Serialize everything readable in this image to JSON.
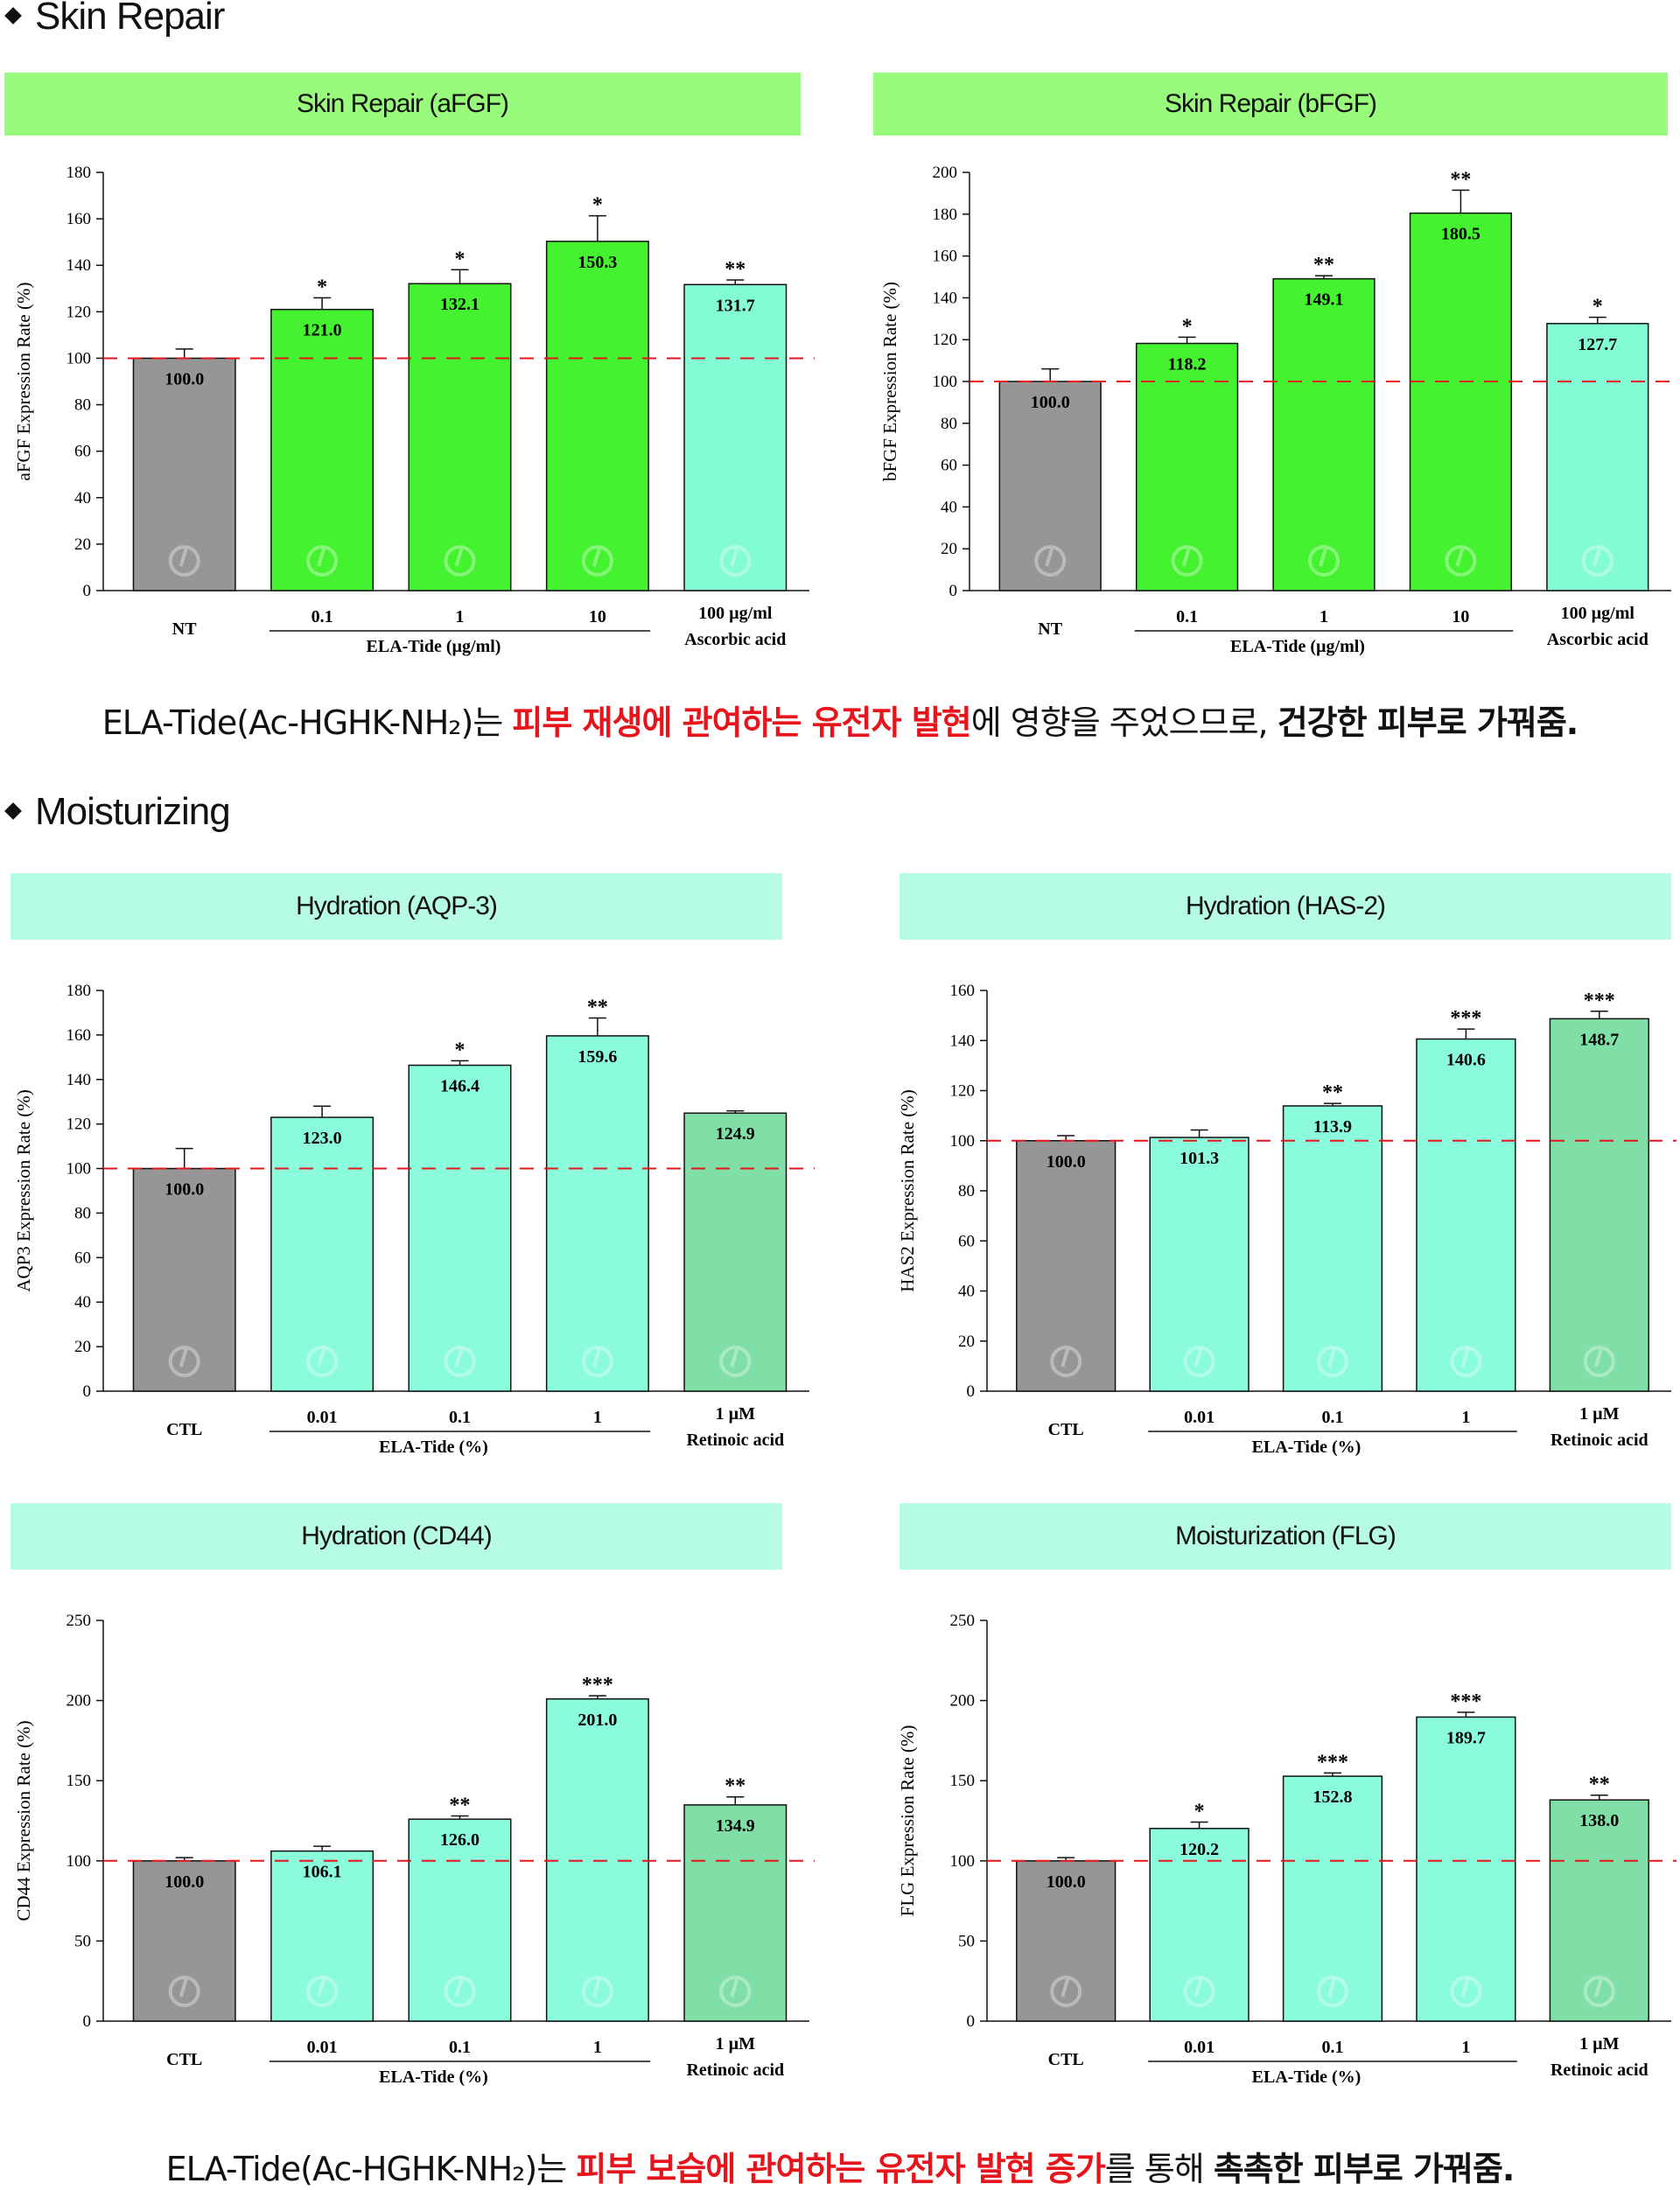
{
  "colors": {
    "repair_header": "#98fb7c",
    "hydration_header": "#b6fbe3",
    "nt_bar": "#969696",
    "ela_repair_bar": "#44f22f",
    "control_repair_bar": "#83fcd5",
    "ela_hydration_bar": "#8afcdc",
    "retinoic_bar": "#80dfa6",
    "reference_line": "#e8141b",
    "highlight_text": "#e8141b"
  },
  "sections": {
    "repair": {
      "title": "Skin Repair"
    },
    "moisturizing": {
      "title": "Moisturizing"
    }
  },
  "summaries": {
    "repair": {
      "part1": "ELA-Tide(Ac-HGHK-NH₂)는 ",
      "part2": "피부 재생에 관여하는 유전자 발현",
      "part3": "에 영향을 주었으므로, ",
      "part4": "건강한 피부로 가꿔줌."
    },
    "moisturizing": {
      "part1": "ELA-Tide(Ac-HGHK-NH₂)는 ",
      "part2": "피부 보습에 관여하는 유전자 발현 증가",
      "part3": "를 통해 ",
      "part4": "촉촉한 피부로 가꿔줌."
    }
  },
  "chart_data": [
    {
      "type": "bar",
      "title": "Skin Repair  (aFGF)",
      "ylabel": "aFGF Expression Rate (%)",
      "ylim": [
        0,
        180
      ],
      "yticks": [
        0,
        20,
        40,
        60,
        80,
        100,
        120,
        140,
        160,
        180
      ],
      "reference_line": 100,
      "categories": [
        "NT",
        "0.1",
        "1",
        "10",
        "100 µg/ml Ascorbic acid"
      ],
      "category_lines": [
        [
          "NT"
        ],
        [
          "0.1"
        ],
        [
          "1"
        ],
        [
          "10"
        ],
        [
          "100 µg/ml",
          "Ascorbic acid"
        ]
      ],
      "group_label": "ELA-Tide (µg/ml)",
      "values": [
        100.0,
        121.0,
        132.1,
        150.3,
        131.7
      ],
      "value_labels": [
        "100.0",
        "121.0",
        "132.1",
        "150.3",
        "131.7"
      ],
      "errors": [
        4,
        5,
        6,
        11,
        2
      ],
      "significance": [
        "",
        "*",
        "*",
        "*",
        "**"
      ],
      "bar_colors": [
        "#969696",
        "#44f22f",
        "#44f22f",
        "#44f22f",
        "#83fcd5"
      ]
    },
    {
      "type": "bar",
      "title": "Skin Repair  (bFGF)",
      "ylabel": "bFGF Expression Rate (%)",
      "ylim": [
        0,
        200
      ],
      "yticks": [
        0,
        20,
        40,
        60,
        80,
        100,
        120,
        140,
        160,
        180,
        200
      ],
      "reference_line": 100,
      "categories": [
        "NT",
        "0.1",
        "1",
        "10",
        "100 µg/ml Ascorbic acid"
      ],
      "category_lines": [
        [
          "NT"
        ],
        [
          "0.1"
        ],
        [
          "1"
        ],
        [
          "10"
        ],
        [
          "100 µg/ml",
          "Ascorbic acid"
        ]
      ],
      "group_label": "ELA-Tide (µg/ml)",
      "values": [
        100.0,
        118.2,
        149.1,
        180.5,
        127.7
      ],
      "value_labels": [
        "100.0",
        "118.2",
        "149.1",
        "180.5",
        "127.7"
      ],
      "errors": [
        6,
        3,
        1.5,
        11,
        3
      ],
      "significance": [
        "",
        "*",
        "**",
        "**",
        "*"
      ],
      "bar_colors": [
        "#969696",
        "#44f22f",
        "#44f22f",
        "#44f22f",
        "#83fcd5"
      ]
    },
    {
      "type": "bar",
      "title": "Hydration (AQP-3)",
      "ylabel": "AQP3 Expression Rate (%)",
      "ylim": [
        0,
        180
      ],
      "yticks": [
        0,
        20,
        40,
        60,
        80,
        100,
        120,
        140,
        160,
        180
      ],
      "reference_line": 100,
      "categories": [
        "CTL",
        "0.01",
        "0.1",
        "1",
        "1 µM Retinoic acid"
      ],
      "category_lines": [
        [
          "CTL"
        ],
        [
          "0.01"
        ],
        [
          "0.1"
        ],
        [
          "1"
        ],
        [
          "1 µM",
          "Retinoic acid"
        ]
      ],
      "group_label": "ELA-Tide (%)",
      "values": [
        100.0,
        123.0,
        146.4,
        159.6,
        124.9
      ],
      "value_labels": [
        "100.0",
        "123.0",
        "146.4",
        "159.6",
        "124.9"
      ],
      "errors": [
        9,
        5,
        2,
        8,
        1
      ],
      "significance": [
        "",
        "",
        "*",
        "**",
        ""
      ],
      "bar_colors": [
        "#969696",
        "#8afcdc",
        "#8afcdc",
        "#8afcdc",
        "#80dfa6"
      ]
    },
    {
      "type": "bar",
      "title": "Hydration (HAS-2)",
      "ylabel": "HAS2 Expression Rate (%)",
      "ylim": [
        0,
        160
      ],
      "yticks": [
        0,
        20,
        40,
        60,
        80,
        100,
        120,
        140,
        160
      ],
      "reference_line": 100,
      "categories": [
        "CTL",
        "0.01",
        "0.1",
        "1",
        "1 µM Retinoic acid"
      ],
      "category_lines": [
        [
          "CTL"
        ],
        [
          "0.01"
        ],
        [
          "0.1"
        ],
        [
          "1"
        ],
        [
          "1 µM",
          "Retinoic acid"
        ]
      ],
      "group_label": "ELA-Tide (%)",
      "values": [
        100.0,
        101.3,
        113.9,
        140.6,
        148.7
      ],
      "value_labels": [
        "100.0",
        "101.3",
        "113.9",
        "140.6",
        "148.7"
      ],
      "errors": [
        2,
        3,
        1,
        4,
        3
      ],
      "significance": [
        "",
        "",
        "**",
        "***",
        "***"
      ],
      "bar_colors": [
        "#969696",
        "#8afcdc",
        "#8afcdc",
        "#8afcdc",
        "#80dfa6"
      ]
    },
    {
      "type": "bar",
      "title": "Hydration (CD44)",
      "ylabel": "CD44 Expression Rate (%)",
      "ylim": [
        0,
        250
      ],
      "yticks": [
        0,
        50,
        100,
        150,
        200,
        250
      ],
      "reference_line": 100,
      "categories": [
        "CTL",
        "0.01",
        "0.1",
        "1",
        "1 µM Retinoic acid"
      ],
      "category_lines": [
        [
          "CTL"
        ],
        [
          "0.01"
        ],
        [
          "0.1"
        ],
        [
          "1"
        ],
        [
          "1 µM",
          "Retinoic acid"
        ]
      ],
      "group_label": "ELA-Tide (%)",
      "values": [
        100.0,
        106.1,
        126.0,
        201.0,
        134.9
      ],
      "value_labels": [
        "100.0",
        "106.1",
        "126.0",
        "201.0",
        "134.9"
      ],
      "errors": [
        2,
        3,
        2,
        2,
        5
      ],
      "significance": [
        "",
        "",
        "**",
        "***",
        "**"
      ],
      "bar_colors": [
        "#969696",
        "#8afcdc",
        "#8afcdc",
        "#8afcdc",
        "#80dfa6"
      ]
    },
    {
      "type": "bar",
      "title": "Moisturization (FLG)",
      "ylabel": "FLG Expression Rate (%)",
      "ylim": [
        0,
        250
      ],
      "yticks": [
        0,
        50,
        100,
        150,
        200,
        250
      ],
      "reference_line": 100,
      "categories": [
        "CTL",
        "0.01",
        "0.1",
        "1",
        "1 µM Retinoic acid"
      ],
      "category_lines": [
        [
          "CTL"
        ],
        [
          "0.01"
        ],
        [
          "0.1"
        ],
        [
          "1"
        ],
        [
          "1 µM",
          "Retinoic acid"
        ]
      ],
      "group_label": "ELA-Tide (%)",
      "values": [
        100.0,
        120.2,
        152.8,
        189.7,
        138.0
      ],
      "value_labels": [
        "100.0",
        "120.2",
        "152.8",
        "189.7",
        "138.0"
      ],
      "errors": [
        2,
        4,
        2,
        3,
        3
      ],
      "significance": [
        "",
        "*",
        "***",
        "***",
        "**"
      ],
      "bar_colors": [
        "#969696",
        "#8afcdc",
        "#8afcdc",
        "#8afcdc",
        "#80dfa6"
      ]
    }
  ]
}
